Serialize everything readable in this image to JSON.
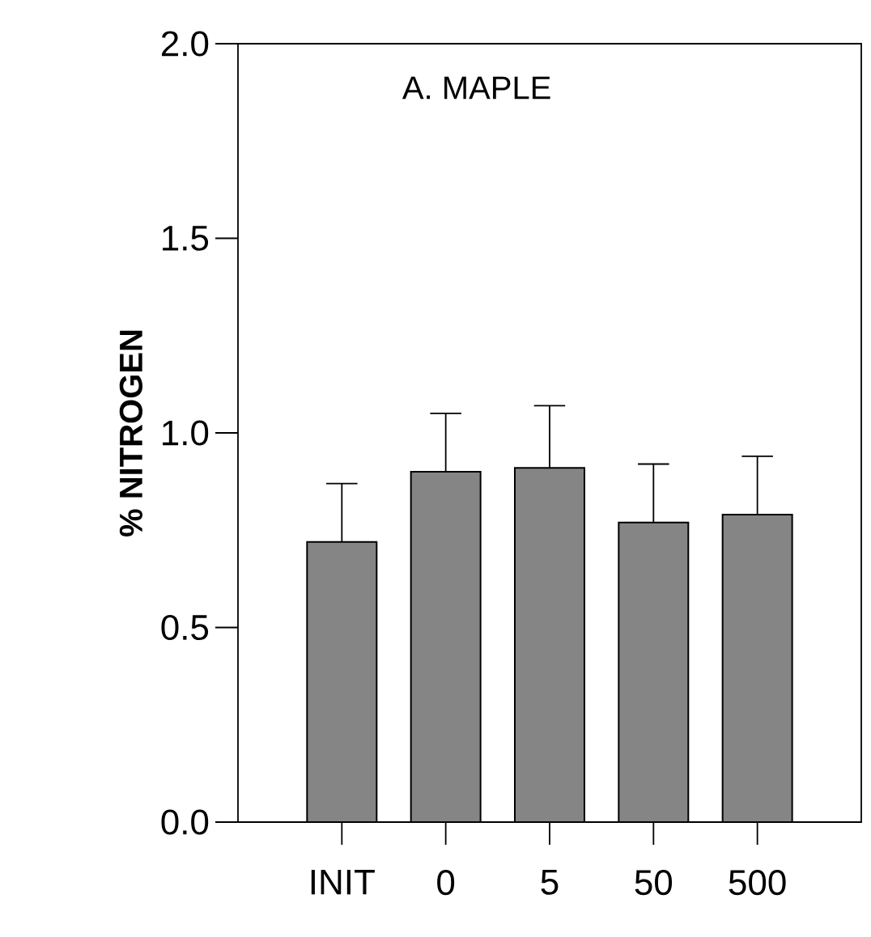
{
  "chart_data": {
    "type": "bar",
    "title": "A.  MAPLE",
    "ylabel": "% NITROGEN",
    "categories": [
      "INIT",
      "0",
      "5",
      "50",
      "500"
    ],
    "values": [
      0.72,
      0.9,
      0.91,
      0.77,
      0.79
    ],
    "errors": [
      [
        0.72,
        0.87
      ],
      [
        0.9,
        1.05
      ],
      [
        0.91,
        1.07
      ],
      [
        0.77,
        0.92
      ],
      [
        0.79,
        0.94
      ]
    ],
    "color": "#858585",
    "ylim": [
      0,
      2.0
    ],
    "yticks": [
      {
        "value": 0,
        "label": "0.0"
      },
      {
        "value": 0.5,
        "label": "0.5"
      },
      {
        "value": 1.0,
        "label": "1.0"
      },
      {
        "value": 1.5,
        "label": "1.5"
      },
      {
        "value": 2.0,
        "label": "2.0"
      }
    ],
    "grid": false
  }
}
